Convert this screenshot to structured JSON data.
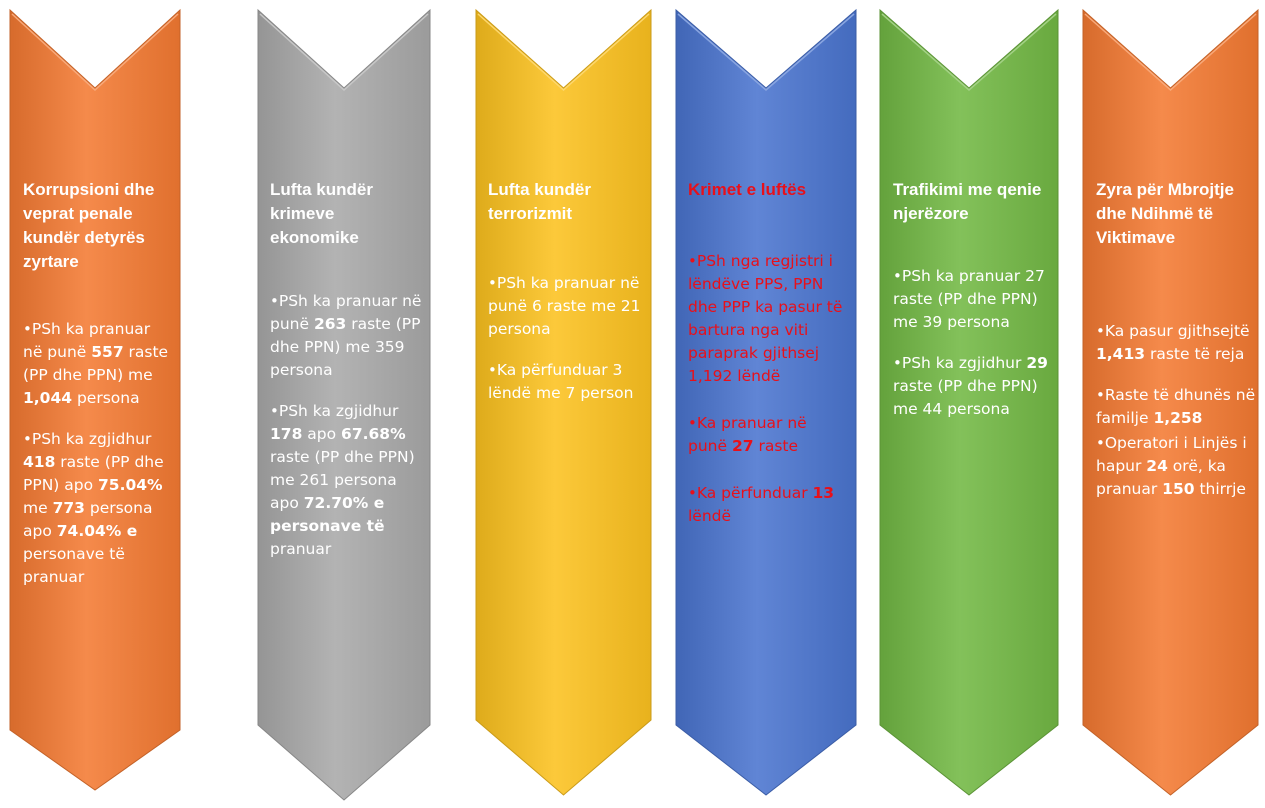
{
  "panels": [
    {
      "id": "corruption",
      "color": "#f47a32",
      "text_color": "#ffffff",
      "title": "Korrupsioni dhe veprat penale kundër detyrës zyrtare",
      "bullets": [
        [
          {
            "t": "PSh ka pranuar në punë "
          },
          {
            "t": "557",
            "b": true
          },
          {
            "t": " raste  (PP dhe PPN) me "
          },
          {
            "t": "1,044",
            "b": true
          },
          {
            "t": " persona"
          }
        ],
        [
          {
            "t": "PSh ka zgjidhur "
          },
          {
            "t": "418",
            "b": true
          },
          {
            "t": " raste (PP dhe PPN) apo "
          },
          {
            "t": "75.04%",
            "b": true
          },
          {
            "t": "  me "
          },
          {
            "t": "773",
            "b": true
          },
          {
            "t": " persona apo "
          },
          {
            "t": "74.04% e",
            "b": true
          },
          {
            "t": " personave të pranuar"
          }
        ]
      ]
    },
    {
      "id": "economic",
      "color": "#a9a9a9",
      "text_color": "#ffffff",
      "title": "Lufta kundër krimeve ekonomike",
      "bullets": [
        [
          {
            "t": "PSh ka pranuar në punë "
          },
          {
            "t": "263",
            "b": true
          },
          {
            "t": " raste (PP dhe PPN) me 359 persona"
          }
        ],
        [
          {
            "t": "PSh ka zgjidhur "
          },
          {
            "t": "178",
            "b": true
          },
          {
            "t": " apo "
          },
          {
            "t": "67.68%",
            "b": true
          },
          {
            "t": " raste (PP dhe PPN) me 261 persona apo "
          },
          {
            "t": "72.70% e personave të",
            "b": true
          },
          {
            "t": " pranuar"
          }
        ]
      ]
    },
    {
      "id": "terrorism",
      "color": "#fcc21f",
      "text_color": "#ffffff",
      "title": "Lufta kundër terrorizmit",
      "bullets": [
        [
          {
            "t": "PSh ka pranuar në punë 6 raste me 21 persona"
          }
        ],
        [
          {
            "t": "Ka përfunduar 3 lëndë me 7 person"
          }
        ]
      ]
    },
    {
      "id": "war-crimes",
      "color": "#4a74cf",
      "text_color": "#e8101a",
      "title": "Krimet e luftës",
      "bullets": [
        [
          {
            "t": "PSh nga regjistri i lëndëve PPS, PPN dhe PPP ka pasur të bartura nga viti paraprak gjithsej 1,192 lëndë"
          }
        ],
        [
          {
            "t": "Ka pranuar në punë "
          },
          {
            "t": "27",
            "b": true
          },
          {
            "t": " raste"
          }
        ],
        [
          {
            "t": "Ka përfunduar "
          },
          {
            "t": "13",
            "b": true
          },
          {
            "t": " lëndë"
          }
        ]
      ]
    },
    {
      "id": "trafficking",
      "color": "#72b844",
      "text_color": "#ffffff",
      "title": "Trafikimi me qenie njerëzore",
      "bullets": [
        [
          {
            "t": "PSh ka pranuar 27 raste  (PP dhe PPN) me 39 persona"
          }
        ],
        [
          {
            "t": "PSh ka zgjidhur "
          },
          {
            "t": "29",
            "b": true
          },
          {
            "t": " raste (PP dhe PPN) me 44 persona"
          }
        ]
      ]
    },
    {
      "id": "victims",
      "color": "#f47a32",
      "text_color": "#ffffff",
      "title": "Zyra për Mbrojtje dhe Ndihmë të Viktimave",
      "bullets": [
        [
          {
            "t": "Ka pasur gjithsejtë "
          },
          {
            "t": "1,413",
            "b": true
          },
          {
            "t": " raste të reja"
          }
        ],
        [
          {
            "t": "Raste të dhunës në familje "
          },
          {
            "t": "1,258",
            "b": true
          }
        ],
        [
          {
            "t": "Operatori i Linjës i hapur "
          },
          {
            "t": "24",
            "b": true
          },
          {
            "t": " orë, ka pranuar "
          },
          {
            "t": "150",
            "b": true
          },
          {
            "t": " thirrje"
          }
        ]
      ]
    }
  ]
}
